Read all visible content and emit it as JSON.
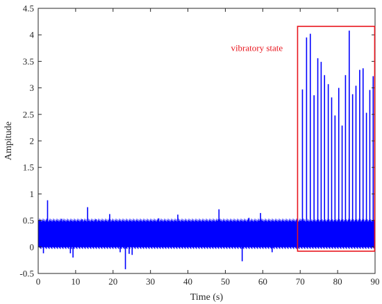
{
  "chart_data": {
    "type": "line",
    "xlabel": "Time (s)",
    "ylabel": "Ampitude",
    "xlim": [
      0,
      90
    ],
    "ylim": [
      -0.5,
      4.5
    ],
    "xticks": [
      0,
      10,
      20,
      30,
      40,
      50,
      60,
      70,
      80,
      90
    ],
    "yticks": [
      -0.5,
      0,
      0.5,
      1,
      1.5,
      2,
      2.5,
      3,
      3.5,
      4,
      4.5
    ],
    "xtick_labels": [
      "0",
      "10",
      "20",
      "30",
      "40",
      "50",
      "60",
      "70",
      "80",
      "90"
    ],
    "ytick_labels": [
      "-0.5",
      "0",
      "0.5",
      "1",
      "1.5",
      "2",
      "2.5",
      "3",
      "3.5",
      "4",
      "4.5"
    ],
    "grid": false,
    "series_color": "#0000ff",
    "noise_band": {
      "min": 0.0,
      "max": 0.48
    },
    "spikes": [
      {
        "x": 1.4,
        "y": -0.12
      },
      {
        "x": 2.5,
        "y": 0.88
      },
      {
        "x": 6.3,
        "y": 0.53
      },
      {
        "x": 8.6,
        "y": -0.12
      },
      {
        "x": 9.3,
        "y": -0.2
      },
      {
        "x": 11.8,
        "y": 0.52
      },
      {
        "x": 13.2,
        "y": 0.75
      },
      {
        "x": 15.5,
        "y": 0.52
      },
      {
        "x": 19.1,
        "y": 0.62
      },
      {
        "x": 21.9,
        "y": -0.1
      },
      {
        "x": 23.3,
        "y": -0.42
      },
      {
        "x": 24.3,
        "y": -0.13
      },
      {
        "x": 25.1,
        "y": -0.15
      },
      {
        "x": 32.2,
        "y": 0.54
      },
      {
        "x": 37.3,
        "y": 0.61
      },
      {
        "x": 48.3,
        "y": 0.71
      },
      {
        "x": 54.5,
        "y": -0.27
      },
      {
        "x": 56.3,
        "y": 0.55
      },
      {
        "x": 59.4,
        "y": 0.64
      },
      {
        "x": 62.5,
        "y": -0.1
      },
      {
        "x": 70.6,
        "y": 2.97
      },
      {
        "x": 71.7,
        "y": 3.95
      },
      {
        "x": 72.7,
        "y": 4.02
      },
      {
        "x": 73.7,
        "y": 2.86
      },
      {
        "x": 74.7,
        "y": 3.56
      },
      {
        "x": 75.6,
        "y": 3.49
      },
      {
        "x": 76.5,
        "y": 3.24
      },
      {
        "x": 77.5,
        "y": 3.07
      },
      {
        "x": 78.4,
        "y": 2.82
      },
      {
        "x": 79.3,
        "y": 2.48
      },
      {
        "x": 80.3,
        "y": 3.0
      },
      {
        "x": 81.2,
        "y": 2.29
      },
      {
        "x": 82.1,
        "y": 3.24
      },
      {
        "x": 83.1,
        "y": 4.08
      },
      {
        "x": 84.0,
        "y": 2.88
      },
      {
        "x": 84.9,
        "y": 3.04
      },
      {
        "x": 85.9,
        "y": 3.34
      },
      {
        "x": 86.8,
        "y": 3.37
      },
      {
        "x": 87.7,
        "y": 2.53
      },
      {
        "x": 88.6,
        "y": 2.96
      },
      {
        "x": 89.5,
        "y": 3.22
      }
    ],
    "annotation": {
      "text": "vibratory state",
      "color": "#e8141c",
      "box": {
        "x0": 69.3,
        "x1": 89.9,
        "y0": -0.08,
        "y1": 4.16
      }
    }
  }
}
